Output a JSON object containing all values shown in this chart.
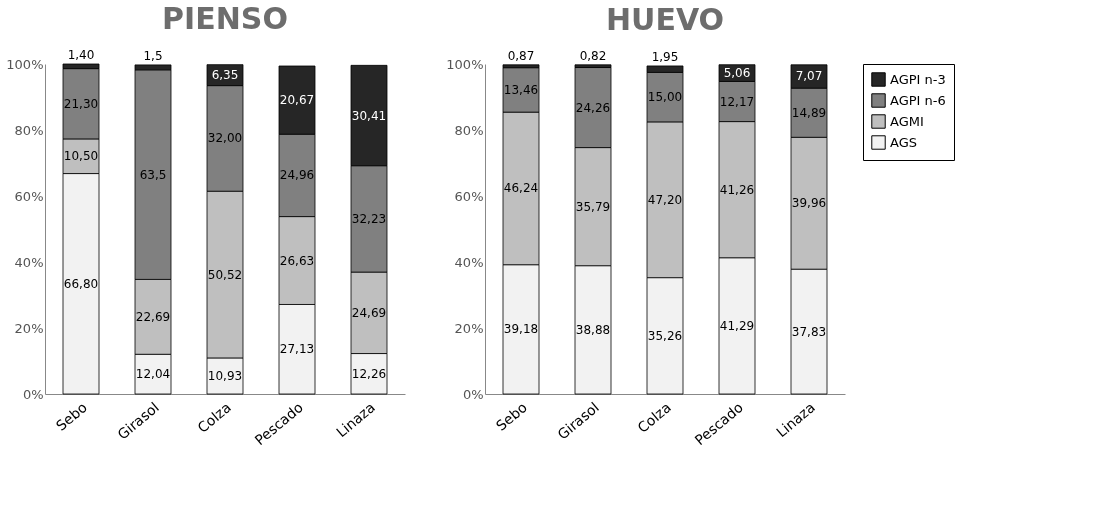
{
  "chart_data": [
    {
      "type": "bar",
      "title": "PIENSO",
      "stacked": true,
      "categories": [
        "Sebo",
        "Girasol",
        "Colza",
        "Pescado",
        "Linaza"
      ],
      "series": [
        {
          "name": "AGS",
          "color": "#f2f2f2",
          "values": [
            66.8,
            12.04,
            10.93,
            27.13,
            12.26
          ],
          "value_labels": [
            "66,80",
            "12,04",
            "10,93",
            "27,13",
            "12,26"
          ]
        },
        {
          "name": "AGMI",
          "color": "#bfbfbf",
          "values": [
            10.5,
            22.69,
            50.52,
            26.63,
            24.69
          ],
          "value_labels": [
            "10,50",
            "22,69",
            "50,52",
            "26,63",
            "24,69"
          ]
        },
        {
          "name": "AGPI n-6",
          "color": "#808080",
          "values": [
            21.3,
            63.5,
            32.0,
            24.96,
            32.23
          ],
          "value_labels": [
            "21,30",
            "63,5",
            "32,00",
            "24,96",
            "32,23"
          ]
        },
        {
          "name": "AGPI n-3",
          "color": "#262626",
          "values": [
            1.4,
            1.5,
            6.35,
            20.67,
            30.41
          ],
          "value_labels": [
            "1,40",
            "1,5",
            "6,35",
            "20,67",
            "30,41"
          ]
        }
      ],
      "ylim": [
        0,
        100
      ],
      "yticks": [
        {
          "value": 0,
          "label": "0%"
        },
        {
          "value": 20,
          "label": "20%"
        },
        {
          "value": 40,
          "label": "40%"
        },
        {
          "value": 60,
          "label": "60%"
        },
        {
          "value": 80,
          "label": "80%"
        },
        {
          "value": 100,
          "label": "100%"
        }
      ],
      "grid": false,
      "legend": "right"
    },
    {
      "type": "bar",
      "title": "HUEVO",
      "stacked": true,
      "categories": [
        "Sebo",
        "Girasol",
        "Colza",
        "Pescado",
        "Linaza"
      ],
      "series": [
        {
          "name": "AGS",
          "color": "#f2f2f2",
          "values": [
            39.18,
            38.88,
            35.26,
            41.29,
            37.83
          ],
          "value_labels": [
            "39,18",
            "38,88",
            "35,26",
            "41,29",
            "37,83"
          ]
        },
        {
          "name": "AGMI",
          "color": "#bfbfbf",
          "values": [
            46.24,
            35.79,
            47.2,
            41.26,
            39.96
          ],
          "value_labels": [
            "46,24",
            "35,79",
            "47,20",
            "41,26",
            "39,96"
          ]
        },
        {
          "name": "AGPI n-6",
          "color": "#808080",
          "values": [
            13.46,
            24.26,
            15.0,
            12.17,
            14.89
          ],
          "value_labels": [
            "13,46",
            "24,26",
            "15,00",
            "12,17",
            "14,89"
          ]
        },
        {
          "name": "AGPI n-3",
          "color": "#262626",
          "values": [
            0.87,
            0.82,
            1.95,
            5.06,
            7.07
          ],
          "value_labels": [
            "0,87",
            "0,82",
            "1,95",
            "5,06",
            "7,07"
          ]
        }
      ],
      "ylim": [
        0,
        100
      ],
      "yticks": [
        {
          "value": 0,
          "label": "0%"
        },
        {
          "value": 20,
          "label": "20%"
        },
        {
          "value": 40,
          "label": "40%"
        },
        {
          "value": 60,
          "label": "60%"
        },
        {
          "value": 80,
          "label": "80%"
        },
        {
          "value": 100,
          "label": "100%"
        }
      ],
      "grid": false,
      "legend": false
    }
  ]
}
